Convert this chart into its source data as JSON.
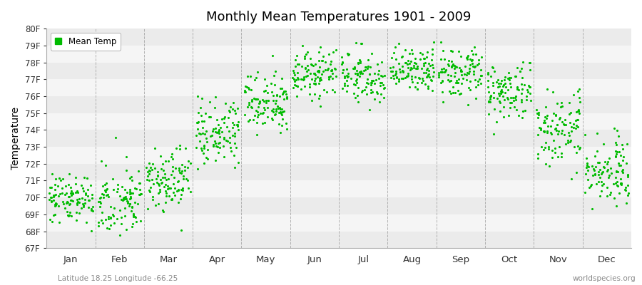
{
  "title": "Monthly Mean Temperatures 1901 - 2009",
  "ylabel": "Temperature",
  "ytick_labels": [
    "67F",
    "68F",
    "69F",
    "70F",
    "71F",
    "72F",
    "73F",
    "74F",
    "75F",
    "76F",
    "77F",
    "78F",
    "79F",
    "80F"
  ],
  "ytick_values": [
    67,
    68,
    69,
    70,
    71,
    72,
    73,
    74,
    75,
    76,
    77,
    78,
    79,
    80
  ],
  "month_labels": [
    "Jan",
    "Feb",
    "Mar",
    "Apr",
    "May",
    "Jun",
    "Jul",
    "Aug",
    "Sep",
    "Oct",
    "Nov",
    "Dec"
  ],
  "month_centers": [
    0.5,
    1.5,
    2.5,
    3.5,
    4.5,
    5.5,
    6.5,
    7.5,
    8.5,
    9.5,
    10.5,
    11.5
  ],
  "dashed_lines": [
    0,
    1,
    2,
    3,
    4,
    5,
    6,
    7,
    8,
    9,
    10,
    11,
    12
  ],
  "dot_color": "#00bb00",
  "background_color": "#ffffff",
  "stripe_color_light": "#f5f5f5",
  "stripe_color_dark": "#ebebeb",
  "legend_label": "Mean Temp",
  "subtitle_left": "Latitude 18.25 Longitude -66.25",
  "subtitle_right": "worldspecies.org",
  "ylim": [
    67,
    80
  ],
  "xlim": [
    0,
    12
  ],
  "num_years": 109,
  "seed": 42,
  "monthly_mean_temps": [
    70.0,
    69.7,
    71.0,
    73.8,
    75.8,
    77.3,
    77.2,
    77.5,
    77.3,
    76.2,
    74.0,
    71.5
  ],
  "monthly_std_temps": [
    0.75,
    1.0,
    0.9,
    1.0,
    0.85,
    0.7,
    0.75,
    0.7,
    0.75,
    0.85,
    1.0,
    1.0
  ]
}
